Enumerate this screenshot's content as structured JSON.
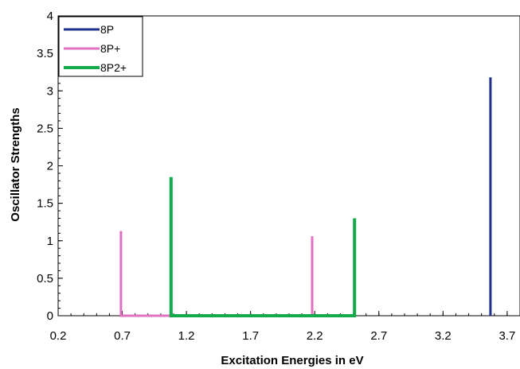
{
  "chart_data": {
    "type": "line",
    "xlabel": "Excitation Energies in eV",
    "ylabel": "Oscillator Strengths",
    "xlim": [
      0.2,
      3.8
    ],
    "ylim": [
      0,
      4
    ],
    "x_ticks": [
      "0.2",
      "0.7",
      "1.2",
      "1.7",
      "2.2",
      "2.7",
      "3.2",
      "3.7"
    ],
    "y_ticks": [
      "0",
      "0.5",
      "1",
      "1.5",
      "2",
      "2.5",
      "3",
      "3.5",
      "4"
    ],
    "grid": false,
    "legend_position": "top-left",
    "series": [
      {
        "name": "8P",
        "color": "#1f2f8c",
        "points": [
          [
            3.57,
            0
          ],
          [
            3.57,
            3.18
          ]
        ]
      },
      {
        "name": "8P+",
        "color": "#e070c0",
        "points": [
          [
            0.69,
            1.13
          ],
          [
            0.69,
            0
          ],
          [
            2.18,
            0
          ],
          [
            2.18,
            1.06
          ]
        ]
      },
      {
        "name": "8P2+",
        "color": "#12aa4a",
        "points": [
          [
            1.08,
            1.85
          ],
          [
            1.08,
            0
          ],
          [
            2.51,
            0
          ],
          [
            2.51,
            1.3
          ]
        ]
      }
    ]
  }
}
